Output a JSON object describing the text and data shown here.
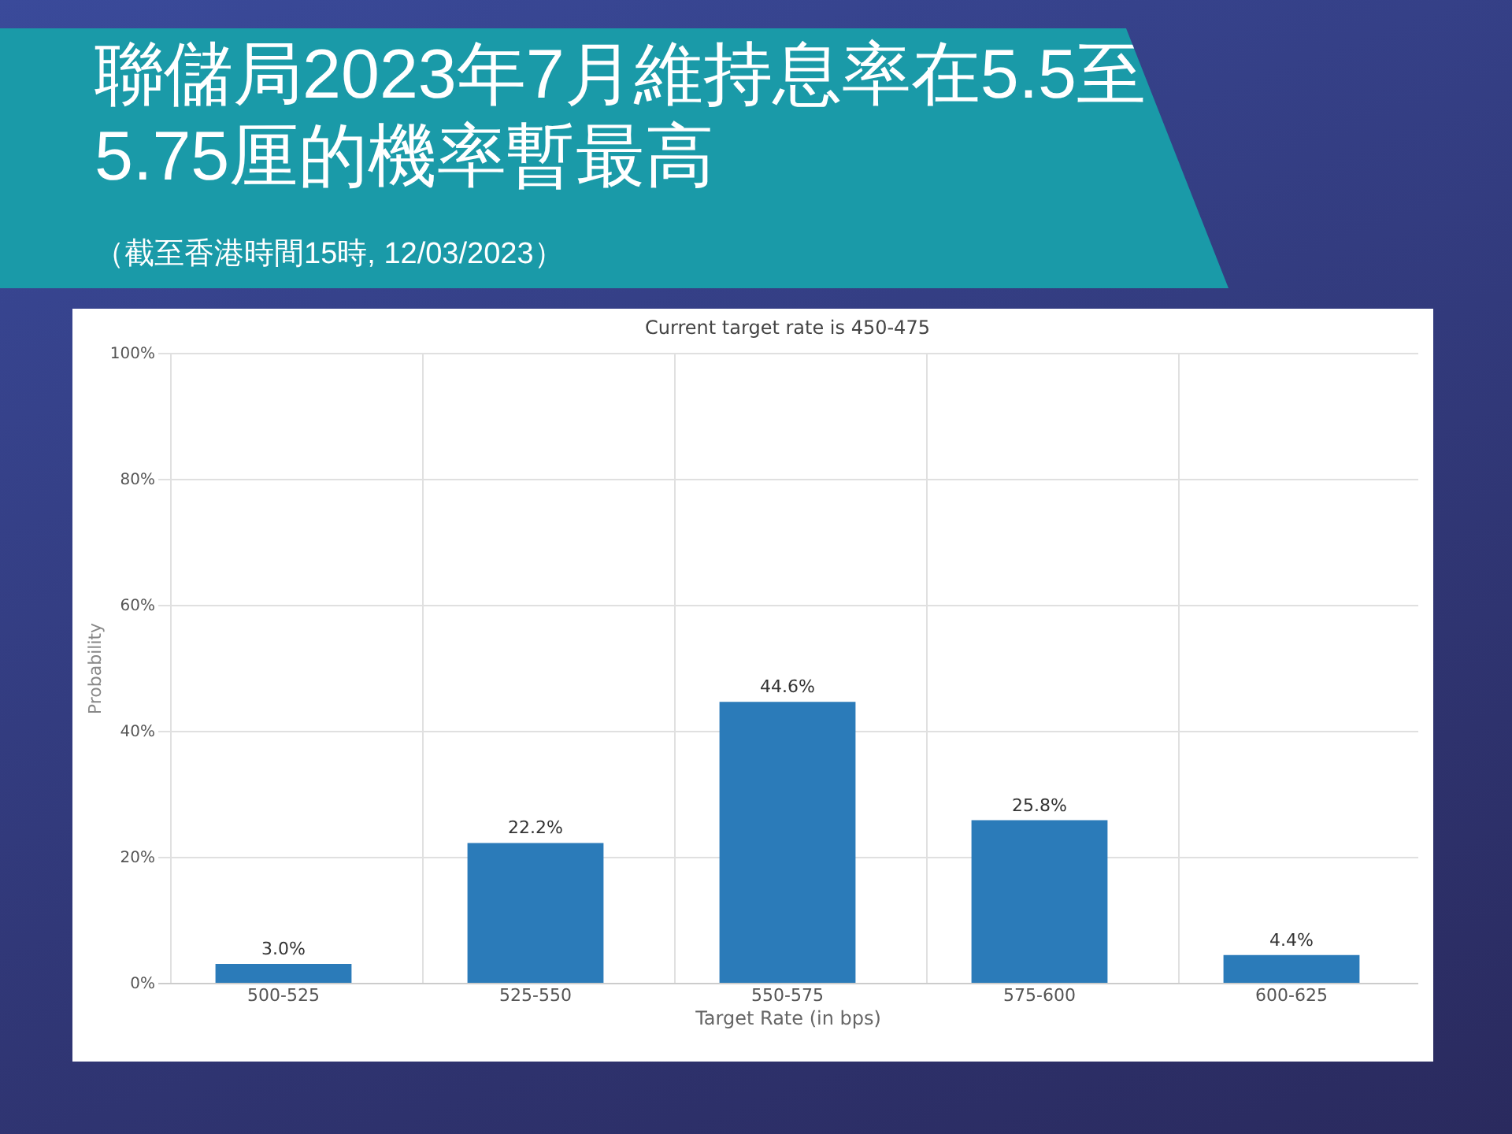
{
  "chart_data": {
    "type": "bar",
    "title": "聯儲局2023年7月維持息率在5.5至5.75厘的機率暫最高",
    "subtitle": "（截至香港時間15時, 12/03/2023）",
    "annotations": [
      "Current target rate is 450-475"
    ],
    "xlabel": "Target Rate (in bps)",
    "ylabel": "Probability",
    "categories": [
      "500-525",
      "525-550",
      "550-575",
      "575-600",
      "600-625"
    ],
    "values": [
      3.0,
      22.2,
      44.6,
      25.8,
      4.4
    ],
    "value_labels": [
      "3.0%",
      "22.2%",
      "44.6%",
      "25.8%",
      "4.4%"
    ],
    "color": "#2b7bb9",
    "ylim": [
      0,
      100
    ],
    "yticks": [
      {
        "value": 0,
        "label": "0%"
      },
      {
        "value": 20,
        "label": "20%"
      },
      {
        "value": 40,
        "label": "40%"
      },
      {
        "value": 60,
        "label": "60%"
      },
      {
        "value": 80,
        "label": "80%"
      },
      {
        "value": 100,
        "label": "100%"
      }
    ],
    "grid": true
  }
}
